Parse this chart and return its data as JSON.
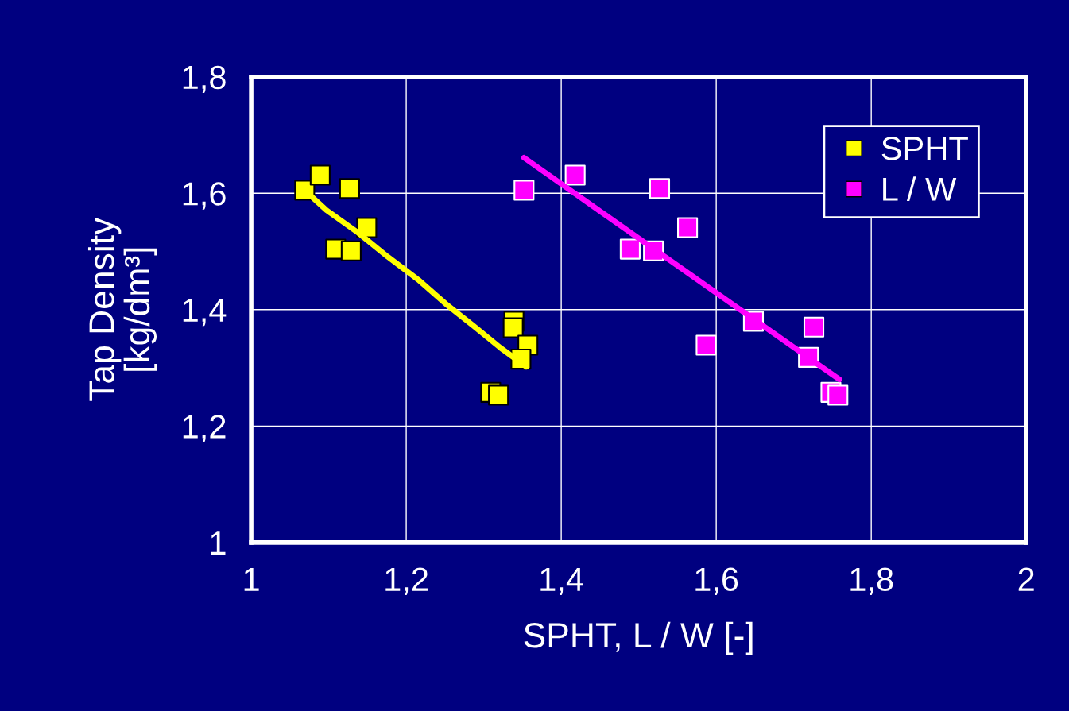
{
  "chart_data": {
    "type": "scatter",
    "xlabel": "SPHT, L / W [-]",
    "ylabel": "Tap Density\n[kg/dm³]",
    "xlim": [
      1,
      2
    ],
    "ylim": [
      1,
      1.8
    ],
    "xticks": [
      1,
      {
        "value": 1.2,
        "label": "1,2"
      },
      {
        "value": 1.4,
        "label": "1,4"
      },
      {
        "value": 1.6,
        "label": "1,6"
      },
      {
        "value": 1.8,
        "label": "1,8"
      },
      2
    ],
    "yticks": [
      1,
      {
        "value": 1.2,
        "label": "1,2"
      },
      {
        "value": 1.4,
        "label": "1,4"
      },
      {
        "value": 1.6,
        "label": "1,6"
      },
      {
        "value": 1.8,
        "label": "1,8"
      }
    ],
    "grid": true,
    "legend": "top right",
    "series": [
      {
        "name": "SPHT",
        "marker": "square",
        "color": "#ffff00",
        "x": [
          1.069,
          1.089,
          1.127,
          1.149,
          1.109,
          1.129,
          1.339,
          1.338,
          1.357,
          1.348,
          1.309,
          1.319
        ],
        "values": [
          1.605,
          1.631,
          1.608,
          1.541,
          1.504,
          1.501,
          1.38,
          1.369,
          1.339,
          1.315,
          1.258,
          1.253
        ]
      },
      {
        "name": "L / W",
        "marker": "square",
        "color": "#ff00ff",
        "x": [
          1.352,
          1.418,
          1.527,
          1.563,
          1.489,
          1.519,
          1.648,
          1.726,
          1.587,
          1.719,
          1.748,
          1.757
        ],
        "values": [
          1.605,
          1.631,
          1.608,
          1.541,
          1.504,
          1.501,
          1.38,
          1.37,
          1.339,
          1.318,
          1.258,
          1.253
        ]
      },
      {
        "type": "line",
        "marker": "none",
        "color": "#ffff00",
        "x": [
          1.069,
          1.097,
          1.138,
          1.176,
          1.215,
          1.251,
          1.286,
          1.322,
          1.355
        ],
        "values": [
          1.605,
          1.571,
          1.532,
          1.491,
          1.452,
          1.41,
          1.373,
          1.334,
          1.302
        ]
      },
      {
        "type": "line",
        "marker": "none",
        "color": "#ff00ff",
        "x": [
          1.352,
          1.759
        ],
        "values": [
          1.661,
          1.28
        ]
      }
    ]
  }
}
